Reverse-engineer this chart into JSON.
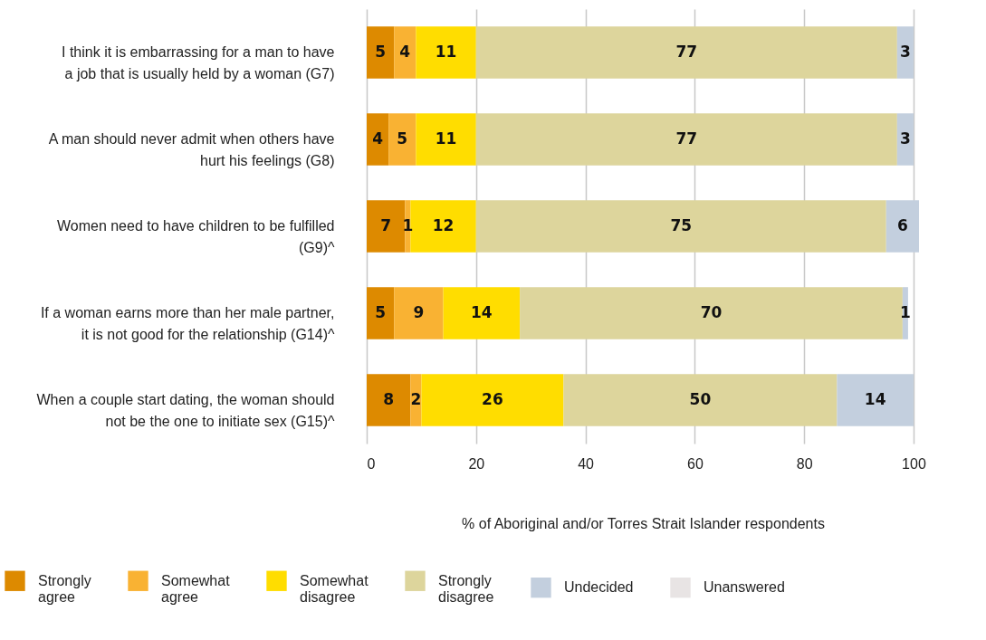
{
  "chart_data": {
    "type": "bar",
    "orientation": "horizontal",
    "stacked": true,
    "data_labels": true,
    "grid": "x",
    "legend": "bottom",
    "xlabel": "% of Aboriginal and/or Torres Strait Islander respondents",
    "categories": [
      "I think it is embarrassing for a man to have a job that is usually held by a woman (G7)",
      "A man should never admit when others have hurt his feelings (G8)",
      "Women need to have children to be fulfilled (G9)^",
      "If a woman earns more than her male partner, it is not good for the relationship (G14)^",
      "When a couple start dating, the woman should not be the one to initiate sex (G15)^"
    ],
    "xlim": [
      0,
      101
    ],
    "xticks": [
      0,
      20,
      40,
      60,
      80,
      100
    ],
    "series": [
      {
        "name": "Strongly agree",
        "color": "#dd8a00",
        "values": [
          5,
          4,
          7,
          5,
          8
        ]
      },
      {
        "name": "Somewhat agree",
        "color": "#f9b233",
        "values": [
          4,
          5,
          1,
          9,
          2
        ]
      },
      {
        "name": "Somewhat disagree",
        "color": "#ffdd00",
        "values": [
          11,
          11,
          12,
          14,
          26
        ]
      },
      {
        "name": "Strongly disagree",
        "color": "#ddd59c",
        "values": [
          77,
          77,
          75,
          70,
          50
        ]
      },
      {
        "name": "Undecided",
        "color": "#c3cfde",
        "values": [
          3,
          3,
          6,
          1,
          14
        ]
      },
      {
        "name": "Unanswered",
        "color": "#e8e4e4",
        "values": [
          null,
          null,
          null,
          null,
          null
        ]
      }
    ]
  }
}
